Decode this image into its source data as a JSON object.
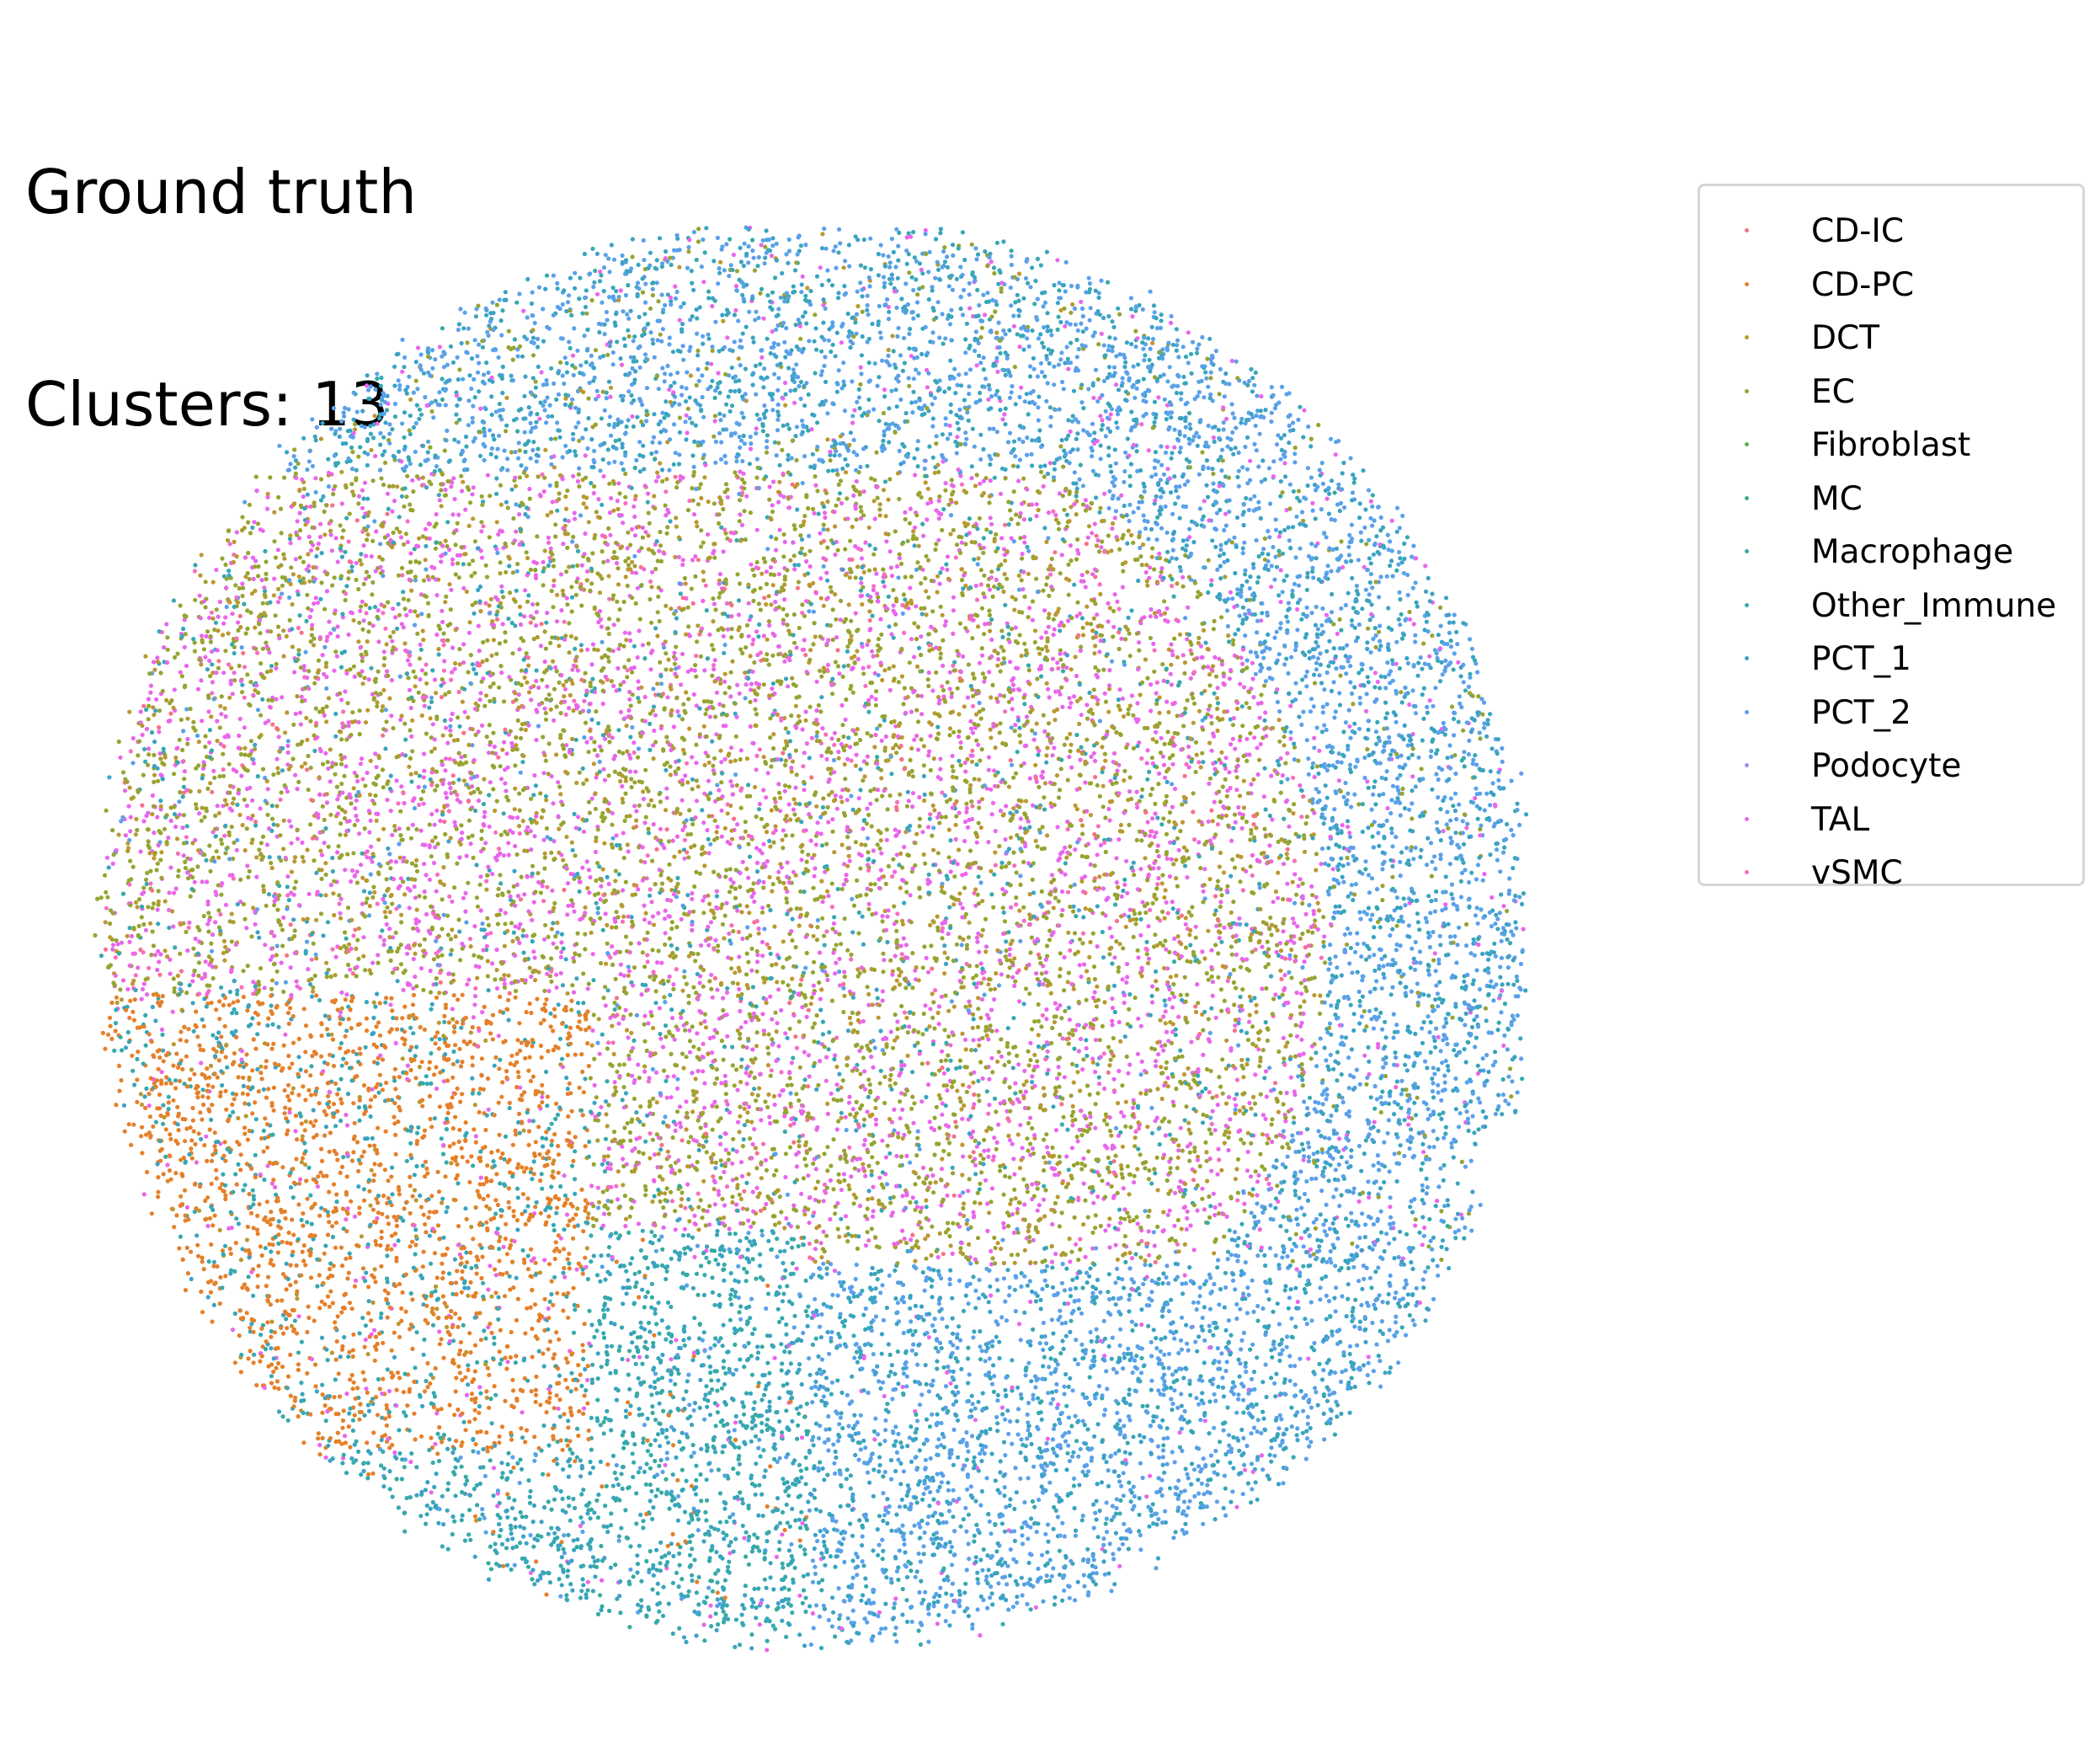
{
  "header": {
    "title_line1": "Ground truth",
    "title_line2": "Clusters: 13"
  },
  "chart_data": {
    "type": "scatter",
    "title": "Ground truth\nClusters: 13",
    "xlabel": "",
    "ylabel": "",
    "axes_visible": false,
    "grid": false,
    "legend_placement": "outside-right",
    "series": [
      {
        "name": "CD-IC",
        "color": "#f77189"
      },
      {
        "name": "CD-PC",
        "color": "#e5802a"
      },
      {
        "name": "DCT",
        "color": "#bb9831"
      },
      {
        "name": "EC",
        "color": "#97a431"
      },
      {
        "name": "Fibroblast",
        "color": "#5fae47"
      },
      {
        "name": "MC",
        "color": "#33b08e"
      },
      {
        "name": "Macrophage",
        "color": "#35ab9f"
      },
      {
        "name": "Other_Immune",
        "color": "#37a8b0"
      },
      {
        "name": "PCT_1",
        "color": "#3aa3c2"
      },
      {
        "name": "PCT_2",
        "color": "#5aa1e9"
      },
      {
        "name": "Podocyte",
        "color": "#a68af2"
      },
      {
        "name": "TAL",
        "color": "#e966eb"
      },
      {
        "name": "vSMC",
        "color": "#f66fbf"
      }
    ]
  }
}
